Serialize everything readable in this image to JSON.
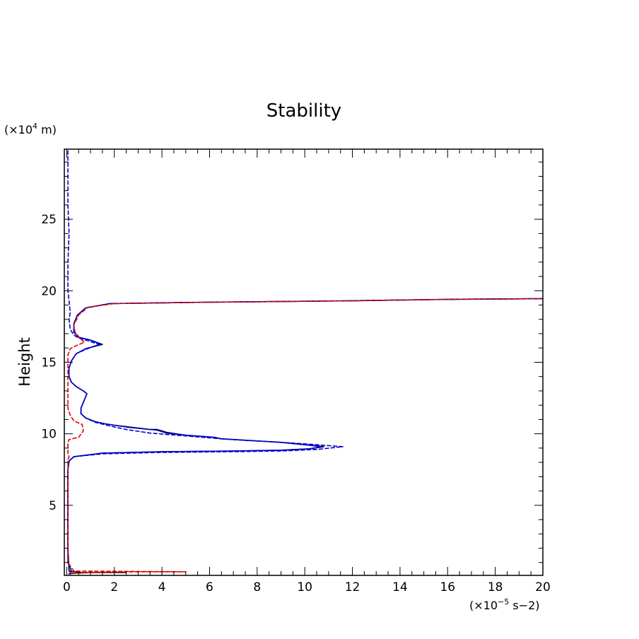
{
  "chart_data": {
    "type": "line",
    "title": "Stability",
    "xlabel": "",
    "ylabel": "Height",
    "x_units": "(×10",
    "x_units_exp": "−5",
    "x_units_tail": " s−2)",
    "y_units": "(×10",
    "y_units_exp": "4",
    "y_units_tail": " m)",
    "xlim": [
      -0.1,
      20
    ],
    "ylim": [
      0.1,
      29.9
    ],
    "x_ticks": [
      0,
      2,
      4,
      6,
      8,
      10,
      12,
      14,
      16,
      18,
      20
    ],
    "x_tick_labels": [
      "0",
      "2",
      "4",
      "6",
      "8",
      "10",
      "12",
      "14",
      "16",
      "18",
      "20"
    ],
    "y_ticks": [
      5,
      10,
      15,
      20,
      25
    ],
    "y_tick_labels": [
      "5",
      "10",
      "15",
      "20",
      "25"
    ],
    "grid": false,
    "legend": "none",
    "series": [
      {
        "color": "#000000",
        "dash": "solid",
        "points": [
          [
            0.1,
            0.2
          ],
          [
            0.3,
            0.25
          ],
          [
            1.0,
            0.3
          ],
          [
            2.5,
            0.3
          ],
          [
            0.6,
            0.3
          ],
          [
            0.1,
            0.4
          ],
          [
            0.05,
            2
          ],
          [
            0.05,
            4
          ],
          [
            0.05,
            6
          ],
          [
            0.05,
            7.5
          ],
          [
            0.1,
            8.1
          ],
          [
            0.3,
            8.4
          ],
          [
            1.5,
            8.65
          ],
          [
            4,
            8.75
          ],
          [
            7,
            8.8
          ],
          [
            9,
            8.85
          ],
          [
            10.2,
            8.95
          ],
          [
            10.8,
            9.1
          ],
          [
            10.3,
            9.2
          ],
          [
            9,
            9.4
          ],
          [
            7.5,
            9.55
          ],
          [
            6.5,
            9.65
          ],
          [
            6.2,
            9.75
          ],
          [
            5,
            9.9
          ],
          [
            4.2,
            10.1
          ],
          [
            4,
            10.2
          ],
          [
            3.8,
            10.3
          ],
          [
            3.5,
            10.3
          ],
          [
            3,
            10.4
          ],
          [
            2.5,
            10.5
          ],
          [
            2,
            10.6
          ],
          [
            1.6,
            10.7
          ],
          [
            1.2,
            10.85
          ],
          [
            0.8,
            11.1
          ],
          [
            0.6,
            11.4
          ],
          [
            0.6,
            11.8
          ],
          [
            0.7,
            12.2
          ],
          [
            0.85,
            12.8
          ],
          [
            0.7,
            13
          ],
          [
            0.4,
            13.3
          ],
          [
            0.2,
            13.6
          ],
          [
            0.1,
            14
          ],
          [
            0.1,
            14.6
          ],
          [
            0.2,
            15.1
          ],
          [
            0.4,
            15.6
          ],
          [
            0.8,
            15.95
          ],
          [
            1.5,
            16.25
          ],
          [
            1.0,
            16.55
          ],
          [
            0.5,
            16.75
          ],
          [
            0.3,
            17.1
          ],
          [
            0.3,
            17.7
          ],
          [
            0.45,
            18.3
          ],
          [
            0.8,
            18.8
          ],
          [
            1.8,
            19.1
          ],
          [
            6,
            19.2
          ],
          [
            12,
            19.3
          ],
          [
            16,
            19.4
          ],
          [
            20,
            19.45
          ]
        ]
      },
      {
        "color": "#0000cc",
        "dash": "solid",
        "points": [
          [
            0.1,
            0.2
          ],
          [
            0.2,
            0.4
          ],
          [
            0.05,
            1
          ],
          [
            0.05,
            4
          ],
          [
            0.05,
            6
          ],
          [
            0.05,
            7.5
          ],
          [
            0.1,
            8.1
          ],
          [
            0.3,
            8.4
          ],
          [
            1.5,
            8.65
          ],
          [
            4,
            8.75
          ],
          [
            7,
            8.8
          ],
          [
            9,
            8.85
          ],
          [
            10.2,
            8.95
          ],
          [
            10.7,
            9.1
          ],
          [
            10.2,
            9.2
          ],
          [
            9,
            9.4
          ],
          [
            7.5,
            9.55
          ],
          [
            6.5,
            9.65
          ],
          [
            6.2,
            9.75
          ],
          [
            5,
            9.9
          ],
          [
            4.2,
            10.05
          ],
          [
            3.8,
            10.25
          ],
          [
            3.2,
            10.35
          ],
          [
            2.6,
            10.45
          ],
          [
            2,
            10.6
          ],
          [
            1.6,
            10.7
          ],
          [
            1.2,
            10.85
          ],
          [
            0.8,
            11.1
          ],
          [
            0.6,
            11.4
          ],
          [
            0.6,
            11.8
          ],
          [
            0.7,
            12.2
          ],
          [
            0.85,
            12.8
          ],
          [
            0.7,
            13
          ],
          [
            0.4,
            13.3
          ],
          [
            0.2,
            13.6
          ],
          [
            0.1,
            14
          ],
          [
            0.1,
            14.6
          ],
          [
            0.2,
            15.1
          ],
          [
            0.4,
            15.6
          ],
          [
            0.8,
            15.95
          ],
          [
            1.45,
            16.25
          ],
          [
            1.0,
            16.55
          ],
          [
            0.5,
            16.75
          ],
          [
            0.3,
            17.1
          ],
          [
            0.3,
            17.7
          ],
          [
            0.45,
            18.3
          ],
          [
            0.8,
            18.8
          ],
          [
            1.8,
            19.1
          ],
          [
            6,
            19.2
          ],
          [
            12,
            19.3
          ],
          [
            16,
            19.4
          ],
          [
            20,
            19.45
          ]
        ]
      },
      {
        "color": "#0000cc",
        "dash": "dashed",
        "points": [
          [
            0.1,
            0.2
          ],
          [
            0.2,
            0.4
          ],
          [
            0.05,
            1
          ],
          [
            0.05,
            4
          ],
          [
            0.05,
            6
          ],
          [
            0.05,
            7.5
          ],
          [
            0.1,
            8.1
          ],
          [
            0.3,
            8.4
          ],
          [
            1.5,
            8.6
          ],
          [
            4,
            8.7
          ],
          [
            7,
            8.75
          ],
          [
            9,
            8.8
          ],
          [
            10.5,
            8.9
          ],
          [
            11.6,
            9.1
          ],
          [
            10.8,
            9.2
          ],
          [
            9.5,
            9.35
          ],
          [
            8,
            9.5
          ],
          [
            6.5,
            9.65
          ],
          [
            5,
            9.85
          ],
          [
            3.5,
            10.05
          ],
          [
            2.5,
            10.3
          ],
          [
            1.8,
            10.55
          ],
          [
            1.2,
            10.8
          ],
          [
            0.8,
            11.1
          ],
          [
            0.6,
            11.4
          ],
          [
            0.6,
            11.8
          ],
          [
            0.7,
            12.2
          ],
          [
            0.85,
            12.8
          ],
          [
            0.7,
            13
          ],
          [
            0.4,
            13.3
          ],
          [
            0.2,
            13.6
          ],
          [
            0.1,
            14
          ],
          [
            0.1,
            14.6
          ],
          [
            0.2,
            15.1
          ],
          [
            0.4,
            15.6
          ],
          [
            0.8,
            15.9
          ],
          [
            1.35,
            16.25
          ],
          [
            0.9,
            16.5
          ],
          [
            0.5,
            16.7
          ],
          [
            0.3,
            16.9
          ],
          [
            0.15,
            17.3
          ],
          [
            0.1,
            18
          ],
          [
            0.15,
            18.5
          ],
          [
            0.05,
            20
          ],
          [
            0.05,
            22
          ],
          [
            0.1,
            24
          ],
          [
            0.05,
            26
          ],
          [
            0.05,
            28
          ],
          [
            0.05,
            29.9
          ]
        ]
      },
      {
        "color": "#e00000",
        "dash": "dashed",
        "points": [
          [
            0.1,
            0.25
          ],
          [
            1,
            0.3
          ],
          [
            3,
            0.35
          ],
          [
            5,
            0.35
          ],
          [
            0.3,
            0.4
          ],
          [
            0.05,
            1
          ],
          [
            0.05,
            4
          ],
          [
            0.05,
            7.8
          ],
          [
            0.05,
            8.2
          ],
          [
            0.1,
            8.4
          ],
          [
            0.05,
            8.6
          ],
          [
            0.05,
            9.4
          ],
          [
            0.1,
            9.6
          ],
          [
            0.5,
            9.75
          ],
          [
            0.7,
            10.2
          ],
          [
            0.65,
            10.65
          ],
          [
            0.3,
            10.9
          ],
          [
            0.15,
            11.3
          ],
          [
            0.05,
            11.8
          ],
          [
            0.05,
            13
          ],
          [
            0.05,
            14.5
          ],
          [
            0.05,
            15.5
          ],
          [
            0.15,
            15.95
          ],
          [
            0.45,
            16.2
          ],
          [
            0.75,
            16.4
          ],
          [
            0.55,
            16.7
          ],
          [
            0.35,
            17.1
          ],
          [
            0.3,
            17.6
          ],
          [
            0.5,
            18.3
          ],
          [
            0.9,
            18.85
          ],
          [
            2,
            19.1
          ],
          [
            6,
            19.2
          ],
          [
            12,
            19.3
          ],
          [
            16,
            19.4
          ],
          [
            20,
            19.45
          ]
        ]
      }
    ]
  }
}
